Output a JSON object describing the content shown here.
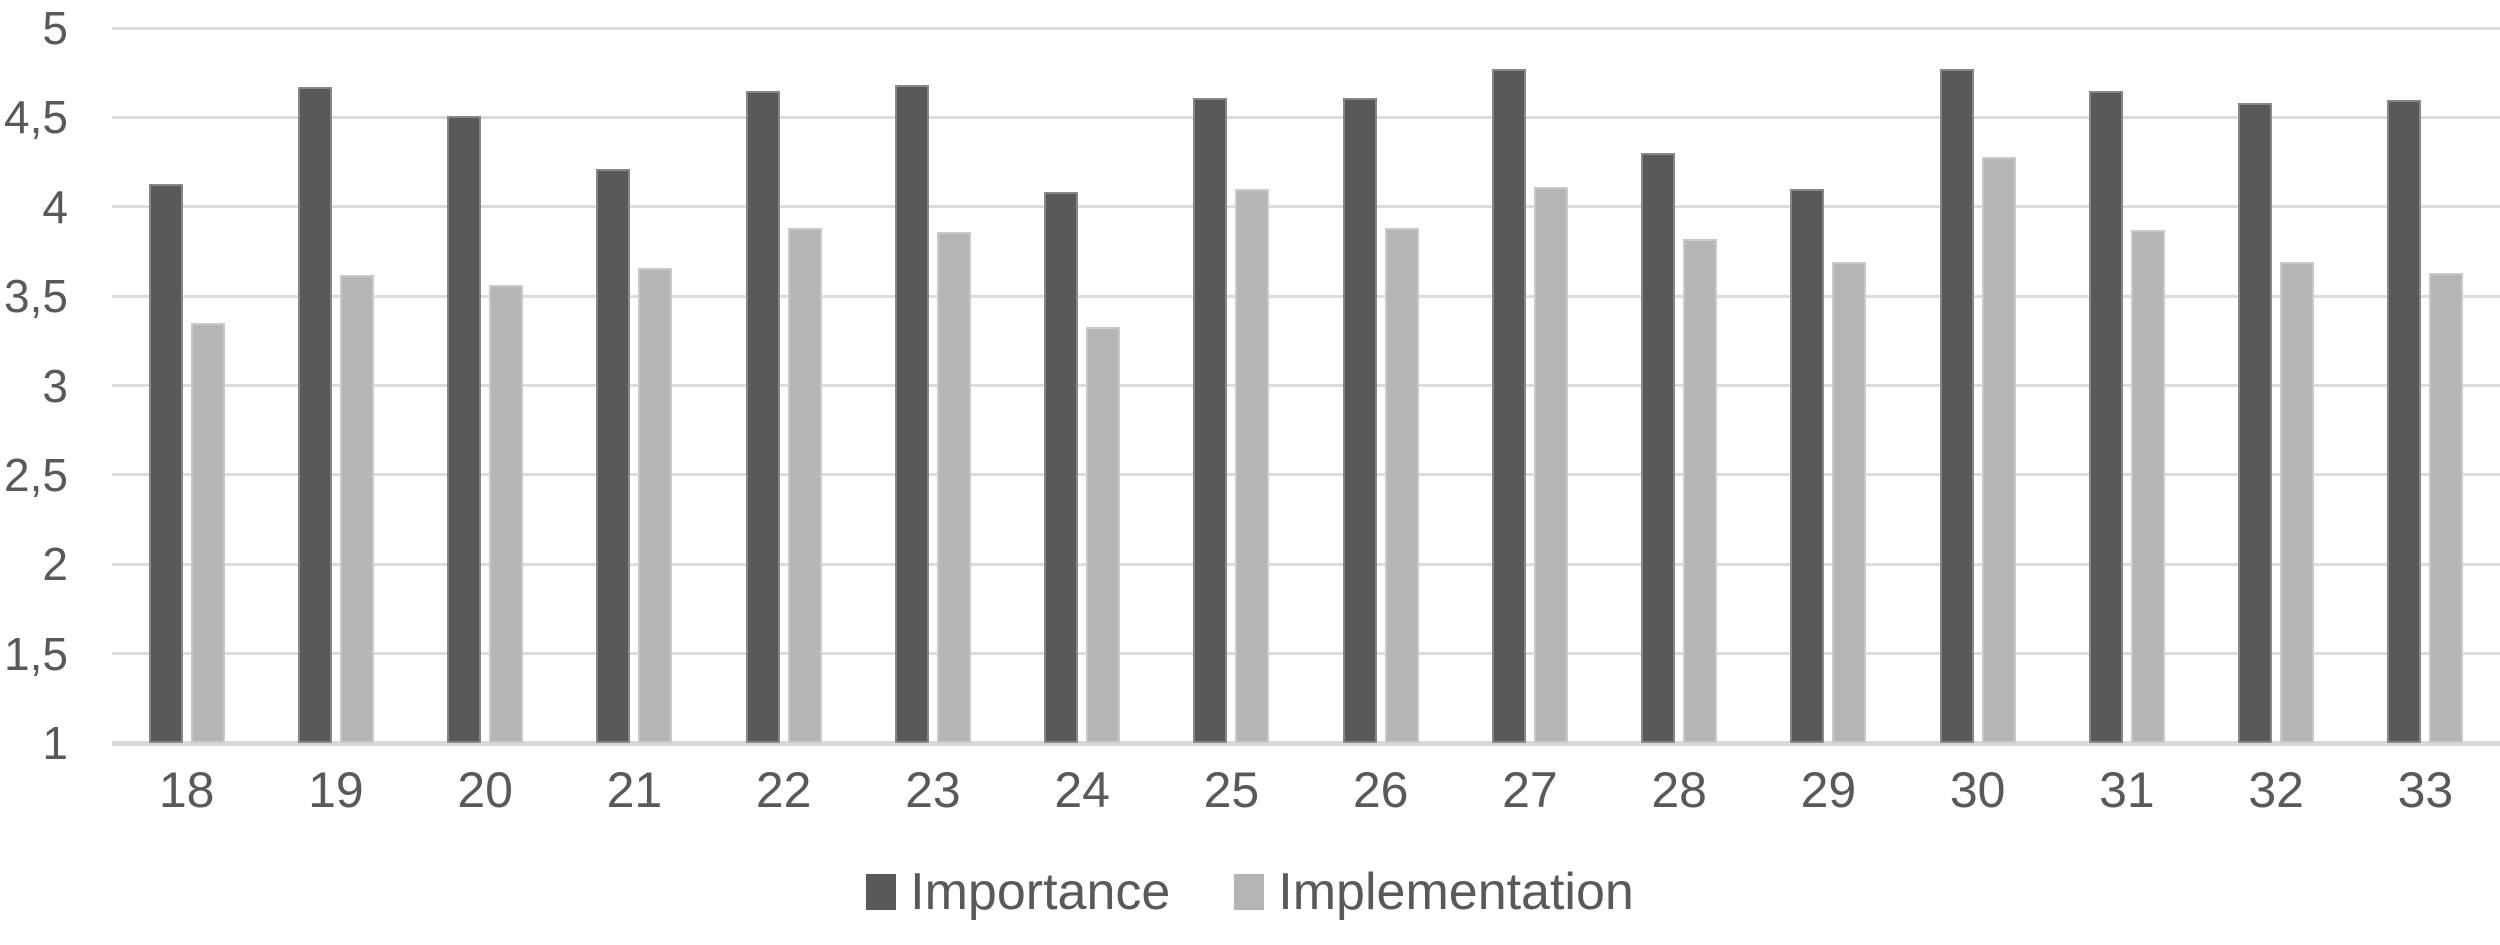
{
  "chart_data": {
    "type": "bar",
    "title": "",
    "xlabel": "",
    "ylabel": "",
    "categories": [
      "18",
      "19",
      "20",
      "21",
      "22",
      "23",
      "24",
      "25",
      "26",
      "27",
      "28",
      "29",
      "30",
      "31",
      "32",
      "33"
    ],
    "series": [
      {
        "name": "Importance",
        "color": "#595959",
        "values": [
          4.13,
          4.67,
          4.51,
          4.21,
          4.65,
          4.68,
          4.08,
          4.61,
          4.61,
          4.77,
          4.3,
          4.1,
          4.77,
          4.65,
          4.58,
          4.6
        ]
      },
      {
        "name": "Implementation",
        "color": "#b5b5b5",
        "values": [
          3.35,
          3.62,
          3.56,
          3.66,
          3.88,
          3.86,
          3.33,
          4.1,
          3.88,
          4.11,
          3.82,
          3.69,
          4.28,
          3.87,
          3.69,
          3.63
        ]
      }
    ],
    "ylim": [
      1,
      5
    ],
    "yticks": [
      {
        "value": 1,
        "label": "1"
      },
      {
        "value": 1.5,
        "label": "1,5"
      },
      {
        "value": 2,
        "label": "2"
      },
      {
        "value": 2.5,
        "label": "2,5"
      },
      {
        "value": 3,
        "label": "3"
      },
      {
        "value": 3.5,
        "label": "3,5"
      },
      {
        "value": 4,
        "label": "4"
      },
      {
        "value": 4.5,
        "label": "4,5"
      },
      {
        "value": 5,
        "label": "5"
      }
    ],
    "grid": true,
    "legend_position": "bottom",
    "gridline_color": "#dcdcdc",
    "baseline_color": "#d9d9d9",
    "axis_text_color": "#595959"
  }
}
